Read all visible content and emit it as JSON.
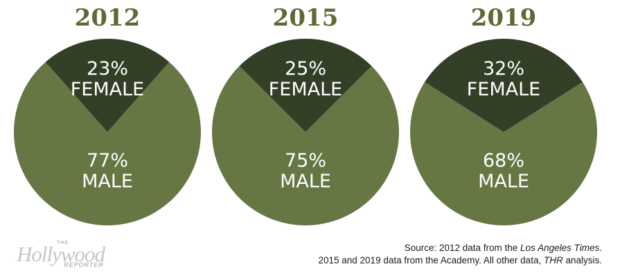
{
  "colors": {
    "male": "#667744",
    "female": "#3c4a2c",
    "title": "#5c6b36"
  },
  "chart_data": [
    {
      "type": "pie",
      "title": "2012",
      "slices": [
        {
          "label_pct": "23%",
          "label_name": "FEMALE",
          "value": 23
        },
        {
          "label_pct": "77%",
          "label_name": "MALE",
          "value": 77
        }
      ]
    },
    {
      "type": "pie",
      "title": "2015",
      "slices": [
        {
          "label_pct": "25%",
          "label_name": "FEMALE",
          "value": 25
        },
        {
          "label_pct": "75%",
          "label_name": "MALE",
          "value": 75
        }
      ]
    },
    {
      "type": "pie",
      "title": "2019",
      "slices": [
        {
          "label_pct": "32%",
          "label_name": "FEMALE",
          "value": 32
        },
        {
          "label_pct": "68%",
          "label_name": "MALE",
          "value": 68
        }
      ]
    }
  ],
  "logo": {
    "small": "THE",
    "big": "Hollywood",
    "sub": "REPORTER"
  },
  "source": {
    "line1_prefix": "Source: 2012 data from the ",
    "line1_italic": "Los Angeles Times",
    "line1_suffix": ".",
    "line2_prefix": "2015 and 2019 data from the Academy. All other data, ",
    "line2_italic": "THR",
    "line2_suffix": " analysis."
  }
}
